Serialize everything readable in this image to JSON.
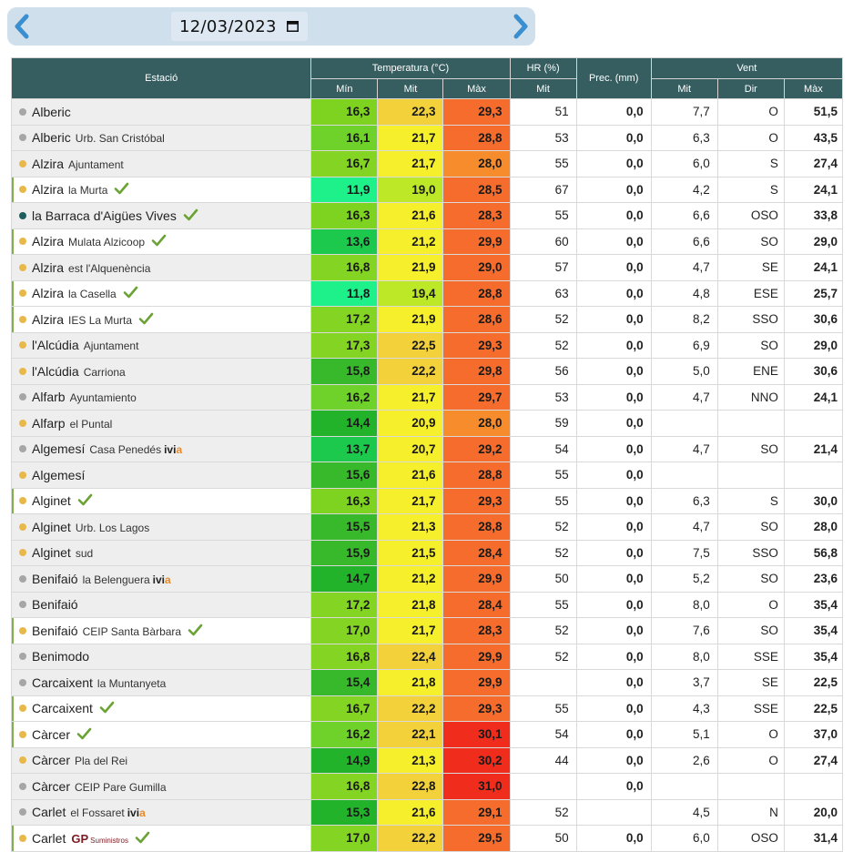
{
  "date_picker": {
    "date": "12/03/2023"
  },
  "headers": {
    "station": "Estació",
    "temperature": "Temperatura (°C)",
    "hr": "HR (%)",
    "prec": "Prec. (mm)",
    "wind": "Vent",
    "t_min": "Mín",
    "t_mit": "Mit",
    "t_max": "Màx",
    "hr_mit": "Mit",
    "w_mit": "Mit",
    "w_dir": "Dir",
    "w_max": "Màx"
  },
  "colors": {
    "header_bg": "#365e60",
    "dot_gray": "#a6a6a6",
    "dot_orange": "#e9b84a",
    "dot_teal": "#1d5e5e",
    "checkmark": "#6aa334",
    "ivia_accent": "#e8892b"
  },
  "rows": [
    {
      "name": "Alberic",
      "sub": "",
      "dot": "gray",
      "hl": false,
      "tag": "",
      "tmin": "16,3",
      "tmit": "22,3",
      "tmax": "29,3",
      "hr": "51",
      "prec": "0,0",
      "wmit": "7,7",
      "wdir": "O",
      "wmax": "51,5",
      "cmin": "#7ed321",
      "cmit": "#f2d13a",
      "cmax": "#f56c2c"
    },
    {
      "name": "Alberic",
      "sub": "Urb. San Cristóbal",
      "dot": "gray",
      "hl": false,
      "tag": "",
      "tmin": "16,1",
      "tmit": "21,7",
      "tmax": "28,8",
      "hr": "53",
      "prec": "0,0",
      "wmit": "6,3",
      "wdir": "O",
      "wmax": "43,5",
      "cmin": "#6fd22a",
      "cmit": "#f6f02c",
      "cmax": "#f56c2c"
    },
    {
      "name": "Alzira",
      "sub": "Ajuntament",
      "dot": "orange",
      "hl": false,
      "tag": "",
      "tmin": "16,7",
      "tmit": "21,7",
      "tmax": "28,0",
      "hr": "55",
      "prec": "0,0",
      "wmit": "6,0",
      "wdir": "S",
      "wmax": "27,4",
      "cmin": "#83d423",
      "cmit": "#f6f02c",
      "cmax": "#f78c2c"
    },
    {
      "name": "Alzira",
      "sub": "la Murta",
      "dot": "orange",
      "hl": true,
      "tag": "check",
      "tmin": "11,9",
      "tmit": "19,0",
      "tmax": "28,5",
      "hr": "67",
      "prec": "0,0",
      "wmit": "4,2",
      "wdir": "S",
      "wmax": "24,1",
      "cmin": "#1ef08a",
      "cmit": "#bde828",
      "cmax": "#f56c2c"
    },
    {
      "name": "la Barraca d'Aigües Vives",
      "sub": "",
      "dot": "teal",
      "hl": false,
      "tag": "check",
      "tmin": "16,3",
      "tmit": "21,6",
      "tmax": "28,3",
      "hr": "55",
      "prec": "0,0",
      "wmit": "6,6",
      "wdir": "OSO",
      "wmax": "33,8",
      "cmin": "#7ed321",
      "cmit": "#f6f02c",
      "cmax": "#f56c2c"
    },
    {
      "name": "Alzira",
      "sub": "Mulata Alzicoop",
      "dot": "orange",
      "hl": true,
      "tag": "check",
      "tmin": "13,6",
      "tmit": "21,2",
      "tmax": "29,9",
      "hr": "60",
      "prec": "0,0",
      "wmit": "6,6",
      "wdir": "SO",
      "wmax": "29,0",
      "cmin": "#1dc94d",
      "cmit": "#f6f02c",
      "cmax": "#f56c2c"
    },
    {
      "name": "Alzira",
      "sub": "est l'Alquenència",
      "dot": "orange",
      "hl": false,
      "tag": "",
      "tmin": "16,8",
      "tmit": "21,9",
      "tmax": "29,0",
      "hr": "57",
      "prec": "0,0",
      "wmit": "4,7",
      "wdir": "SE",
      "wmax": "24,1",
      "cmin": "#83d423",
      "cmit": "#f6f02c",
      "cmax": "#f56c2c"
    },
    {
      "name": "Alzira",
      "sub": "la Casella",
      "dot": "orange",
      "hl": true,
      "tag": "check",
      "tmin": "11,8",
      "tmit": "19,4",
      "tmax": "28,8",
      "hr": "63",
      "prec": "0,0",
      "wmit": "4,8",
      "wdir": "ESE",
      "wmax": "25,7",
      "cmin": "#1ef08a",
      "cmit": "#bde828",
      "cmax": "#f56c2c"
    },
    {
      "name": "Alzira",
      "sub": "IES La Murta",
      "dot": "orange",
      "hl": true,
      "tag": "check",
      "tmin": "17,2",
      "tmit": "21,9",
      "tmax": "28,6",
      "hr": "52",
      "prec": "0,0",
      "wmit": "8,2",
      "wdir": "SSO",
      "wmax": "30,6",
      "cmin": "#83d423",
      "cmit": "#f6f02c",
      "cmax": "#f56c2c"
    },
    {
      "name": "l'Alcúdia",
      "sub": "Ajuntament",
      "dot": "orange",
      "hl": false,
      "tag": "",
      "tmin": "17,3",
      "tmit": "22,5",
      "tmax": "29,3",
      "hr": "52",
      "prec": "0,0",
      "wmit": "6,9",
      "wdir": "SO",
      "wmax": "29,0",
      "cmin": "#83d423",
      "cmit": "#f2d13a",
      "cmax": "#f56c2c"
    },
    {
      "name": "l'Alcúdia",
      "sub": "Carriona",
      "dot": "orange",
      "hl": false,
      "tag": "",
      "tmin": "15,8",
      "tmit": "22,2",
      "tmax": "29,8",
      "hr": "56",
      "prec": "0,0",
      "wmit": "5,0",
      "wdir": "ENE",
      "wmax": "30,6",
      "cmin": "#38b82b",
      "cmit": "#f2d13a",
      "cmax": "#f56c2c"
    },
    {
      "name": "Alfarb",
      "sub": "Ayuntamiento",
      "dot": "gray",
      "hl": false,
      "tag": "",
      "tmin": "16,2",
      "tmit": "21,7",
      "tmax": "29,7",
      "hr": "53",
      "prec": "0,0",
      "wmit": "4,7",
      "wdir": "NNO",
      "wmax": "24,1",
      "cmin": "#6fd22a",
      "cmit": "#f6f02c",
      "cmax": "#f56c2c"
    },
    {
      "name": "Alfarp",
      "sub": "el Puntal",
      "dot": "orange",
      "hl": false,
      "tag": "",
      "tmin": "14,4",
      "tmit": "20,9",
      "tmax": "28,0",
      "hr": "59",
      "prec": "0,0",
      "wmit": "",
      "wdir": "",
      "wmax": "",
      "cmin": "#22b32a",
      "cmit": "#f6f02c",
      "cmax": "#f78c2c"
    },
    {
      "name": "Algemesí",
      "sub": "Casa Penedés",
      "dot": "gray",
      "hl": false,
      "tag": "ivia",
      "tmin": "13,7",
      "tmit": "20,7",
      "tmax": "29,2",
      "hr": "54",
      "prec": "0,0",
      "wmit": "4,7",
      "wdir": "SO",
      "wmax": "21,4",
      "cmin": "#1dc94d",
      "cmit": "#f6f02c",
      "cmax": "#f56c2c"
    },
    {
      "name": "Algemesí",
      "sub": "",
      "dot": "orange",
      "hl": false,
      "tag": "",
      "tmin": "15,6",
      "tmit": "21,6",
      "tmax": "28,8",
      "hr": "55",
      "prec": "0,0",
      "wmit": "",
      "wdir": "",
      "wmax": "",
      "cmin": "#38b82b",
      "cmit": "#f6f02c",
      "cmax": "#f56c2c"
    },
    {
      "name": "Alginet",
      "sub": "",
      "dot": "orange",
      "hl": true,
      "tag": "check",
      "tmin": "16,3",
      "tmit": "21,7",
      "tmax": "29,3",
      "hr": "55",
      "prec": "0,0",
      "wmit": "6,3",
      "wdir": "S",
      "wmax": "30,0",
      "cmin": "#7ed321",
      "cmit": "#f6f02c",
      "cmax": "#f56c2c"
    },
    {
      "name": "Alginet",
      "sub": "Urb. Los Lagos",
      "dot": "orange",
      "hl": false,
      "tag": "",
      "tmin": "15,5",
      "tmit": "21,3",
      "tmax": "28,8",
      "hr": "52",
      "prec": "0,0",
      "wmit": "4,7",
      "wdir": "SO",
      "wmax": "28,0",
      "cmin": "#38b82b",
      "cmit": "#f6f02c",
      "cmax": "#f56c2c"
    },
    {
      "name": "Alginet",
      "sub": "sud",
      "dot": "orange",
      "hl": false,
      "tag": "",
      "tmin": "15,9",
      "tmit": "21,5",
      "tmax": "28,4",
      "hr": "52",
      "prec": "0,0",
      "wmit": "7,5",
      "wdir": "SSO",
      "wmax": "56,8",
      "cmin": "#38b82b",
      "cmit": "#f6f02c",
      "cmax": "#f56c2c"
    },
    {
      "name": "Benifaió",
      "sub": "la Belenguera",
      "dot": "gray",
      "hl": false,
      "tag": "ivia",
      "tmin": "14,7",
      "tmit": "21,2",
      "tmax": "29,9",
      "hr": "50",
      "prec": "0,0",
      "wmit": "5,2",
      "wdir": "SO",
      "wmax": "23,6",
      "cmin": "#22b32a",
      "cmit": "#f6f02c",
      "cmax": "#f56c2c"
    },
    {
      "name": "Benifaió",
      "sub": "",
      "dot": "gray",
      "hl": false,
      "tag": "",
      "tmin": "17,2",
      "tmit": "21,8",
      "tmax": "28,4",
      "hr": "55",
      "prec": "0,0",
      "wmit": "8,0",
      "wdir": "O",
      "wmax": "35,4",
      "cmin": "#83d423",
      "cmit": "#f6f02c",
      "cmax": "#f56c2c"
    },
    {
      "name": "Benifaió",
      "sub": "CEIP Santa Bàrbara",
      "dot": "orange",
      "hl": true,
      "tag": "check",
      "tmin": "17,0",
      "tmit": "21,7",
      "tmax": "28,3",
      "hr": "52",
      "prec": "0,0",
      "wmit": "7,6",
      "wdir": "SO",
      "wmax": "35,4",
      "cmin": "#83d423",
      "cmit": "#f6f02c",
      "cmax": "#f56c2c"
    },
    {
      "name": "Benimodo",
      "sub": "",
      "dot": "gray",
      "hl": false,
      "tag": "",
      "tmin": "16,8",
      "tmit": "22,4",
      "tmax": "29,9",
      "hr": "52",
      "prec": "0,0",
      "wmit": "8,0",
      "wdir": "SSE",
      "wmax": "35,4",
      "cmin": "#83d423",
      "cmit": "#f2d13a",
      "cmax": "#f56c2c"
    },
    {
      "name": "Carcaixent",
      "sub": "la Muntanyeta",
      "dot": "gray",
      "hl": false,
      "tag": "",
      "tmin": "15,4",
      "tmit": "21,8",
      "tmax": "29,9",
      "hr": "",
      "prec": "0,0",
      "wmit": "3,7",
      "wdir": "SE",
      "wmax": "22,5",
      "cmin": "#38b82b",
      "cmit": "#f6f02c",
      "cmax": "#f56c2c"
    },
    {
      "name": "Carcaixent",
      "sub": "",
      "dot": "orange",
      "hl": true,
      "tag": "check",
      "tmin": "16,7",
      "tmit": "22,2",
      "tmax": "29,3",
      "hr": "55",
      "prec": "0,0",
      "wmit": "4,3",
      "wdir": "SSE",
      "wmax": "22,5",
      "cmin": "#83d423",
      "cmit": "#f2d13a",
      "cmax": "#f56c2c"
    },
    {
      "name": "Càrcer",
      "sub": "",
      "dot": "orange",
      "hl": true,
      "tag": "check",
      "tmin": "16,2",
      "tmit": "22,1",
      "tmax": "30,1",
      "hr": "54",
      "prec": "0,0",
      "wmit": "5,1",
      "wdir": "O",
      "wmax": "37,0",
      "cmin": "#6fd22a",
      "cmit": "#f2d13a",
      "cmax": "#f02c1c"
    },
    {
      "name": "Càrcer",
      "sub": "Pla del Rei",
      "dot": "orange",
      "hl": false,
      "tag": "",
      "tmin": "14,9",
      "tmit": "21,3",
      "tmax": "30,2",
      "hr": "44",
      "prec": "0,0",
      "wmit": "2,6",
      "wdir": "O",
      "wmax": "27,4",
      "cmin": "#22b32a",
      "cmit": "#f6f02c",
      "cmax": "#f02c1c"
    },
    {
      "name": "Càrcer",
      "sub": "CEIP Pare Gumilla",
      "dot": "gray",
      "hl": false,
      "tag": "",
      "tmin": "16,8",
      "tmit": "22,8",
      "tmax": "31,0",
      "hr": "",
      "prec": "0,0",
      "wmit": "",
      "wdir": "",
      "wmax": "",
      "cmin": "#83d423",
      "cmit": "#f2d13a",
      "cmax": "#f02c1c"
    },
    {
      "name": "Carlet",
      "sub": "el Fossaret",
      "dot": "gray",
      "hl": false,
      "tag": "ivia",
      "tmin": "15,3",
      "tmit": "21,6",
      "tmax": "29,1",
      "hr": "52",
      "prec": "",
      "wmit": "4,5",
      "wdir": "N",
      "wmax": "20,0",
      "cmin": "#22b32a",
      "cmit": "#f6f02c",
      "cmax": "#f56c2c"
    },
    {
      "name": "Carlet",
      "sub": "",
      "dot": "orange",
      "hl": true,
      "tag": "gp",
      "tmin": "17,0",
      "tmit": "22,2",
      "tmax": "29,5",
      "hr": "50",
      "prec": "0,0",
      "wmit": "6,0",
      "wdir": "OSO",
      "wmax": "31,4",
      "cmin": "#83d423",
      "cmit": "#f2d13a",
      "cmax": "#f56c2c"
    }
  ],
  "ivia_logo": {
    "text": "ivi",
    "accent": "a"
  },
  "gp_logo": {
    "text": "GP",
    "sub": "Suministros"
  }
}
